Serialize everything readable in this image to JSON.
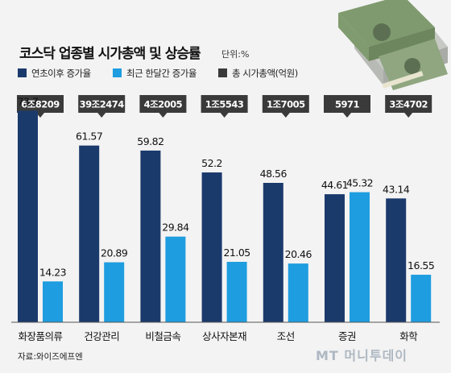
{
  "chart_data": {
    "type": "bar",
    "title": "코스닥 업종별 시가총액 및 상승률",
    "unit": "단위:%",
    "categories": [
      "화장품의류",
      "건강관리",
      "비철금속",
      "상사자본재",
      "조선",
      "증권",
      "화학"
    ],
    "series": [
      {
        "name": "연초이후 증가율",
        "color": "#1b3a6c",
        "values": [
          73.7,
          61.57,
          59.82,
          52.2,
          48.56,
          44.61,
          43.14
        ]
      },
      {
        "name": "최근 한달간 증가율",
        "color": "#1e9de0",
        "values": [
          14.23,
          20.89,
          29.84,
          21.05,
          20.46,
          45.32,
          16.55
        ]
      }
    ],
    "market_cap_series": {
      "name": "총 시가총액(억원)",
      "color": "#3a3a3a"
    },
    "market_cap_labels": [
      "6조8209",
      "39조2474",
      "4조2005",
      "1조5543",
      "1조7005",
      "5971",
      "3조4702"
    ],
    "ylim": [
      0,
      80
    ],
    "grid": false,
    "legend_position": "top-left",
    "source": "자료:와이즈에프엔",
    "watermark": "MT 머니투데이"
  }
}
